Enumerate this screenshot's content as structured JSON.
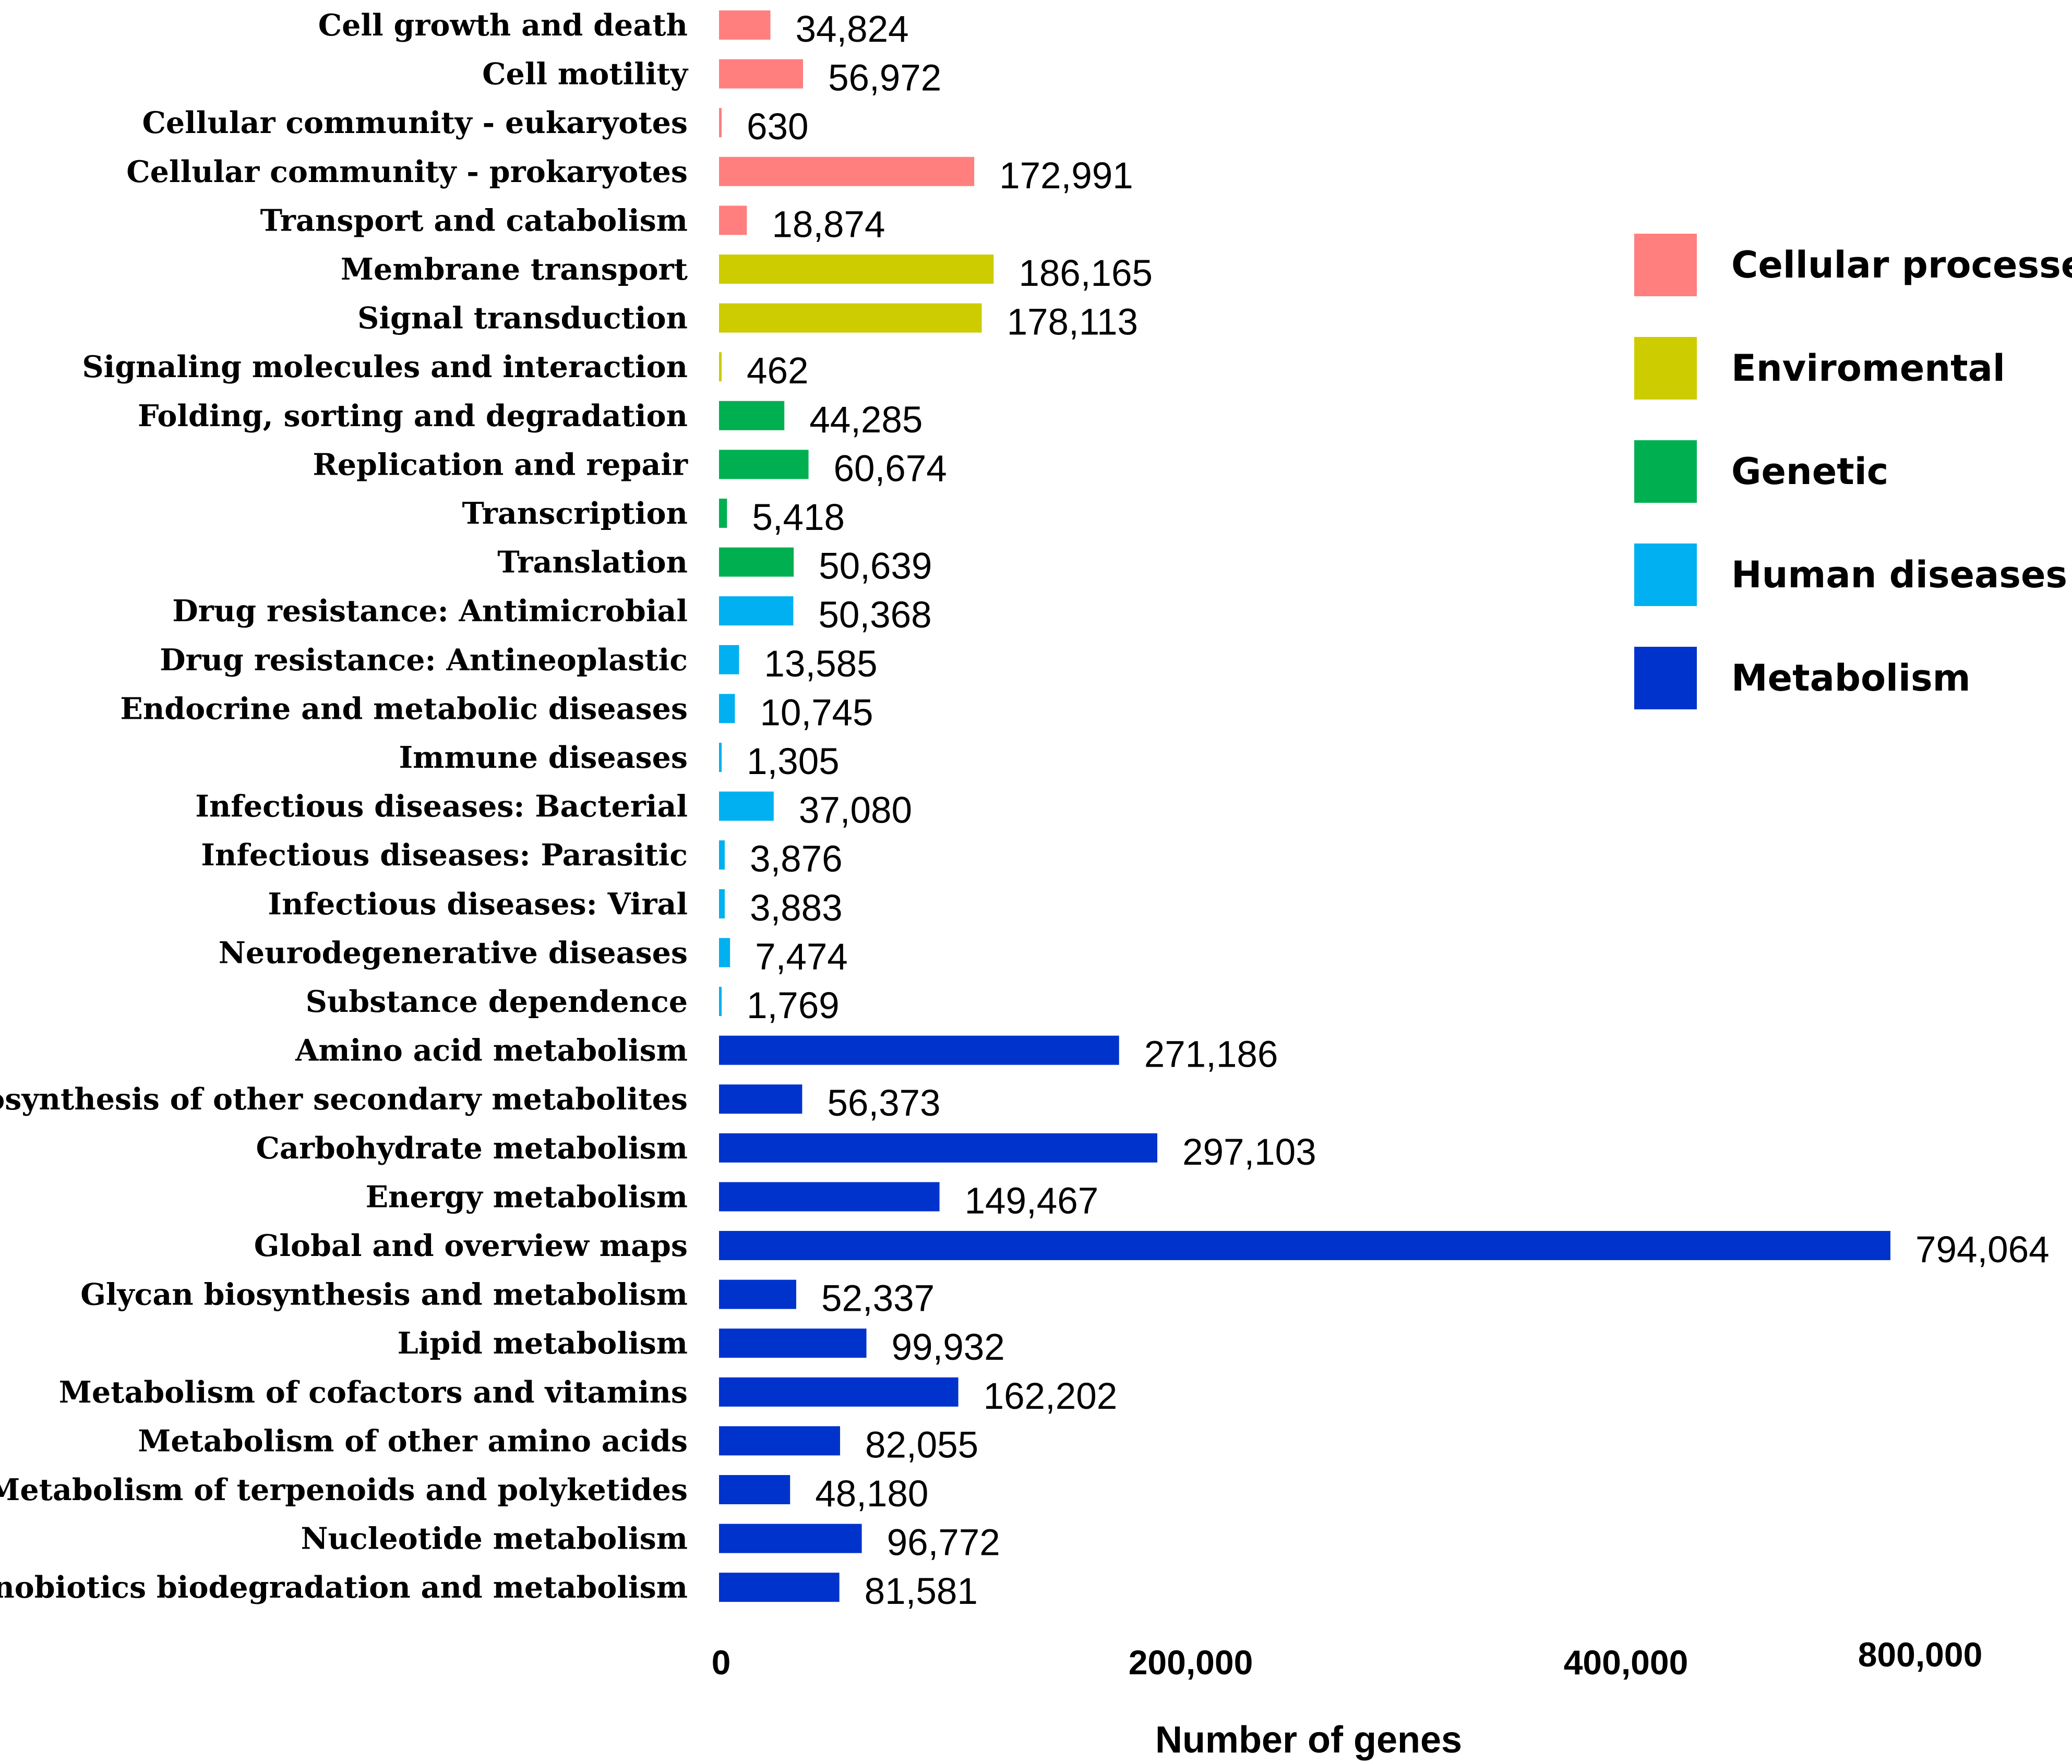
{
  "chart_data": {
    "type": "bar",
    "orientation": "horizontal",
    "xlabel": "Number of genes",
    "ylabel": "",
    "xticks": [
      "0",
      "200,000",
      "400,000",
      "800,000"
    ],
    "legend": [
      {
        "name": "Cellular processes",
        "color": "#ff7f7f"
      },
      {
        "name": "Enviromental",
        "color": "#cccc00"
      },
      {
        "name": "Genetic",
        "color": "#00b050"
      },
      {
        "name": "Human diseases",
        "color": "#00b0f0"
      },
      {
        "name": "Metabolism",
        "color": "#0033cc"
      }
    ],
    "categories": [
      {
        "label": "Cell growth and death",
        "value": 34824,
        "value_label": "34,824",
        "group": 0
      },
      {
        "label": "Cell motility",
        "value": 56972,
        "value_label": "56,972",
        "group": 0
      },
      {
        "label": "Cellular community - eukaryotes",
        "value": 630,
        "value_label": "630",
        "group": 0
      },
      {
        "label": "Cellular community - prokaryotes",
        "value": 172991,
        "value_label": "172,991",
        "group": 0
      },
      {
        "label": "Transport and catabolism",
        "value": 18874,
        "value_label": "18,874",
        "group": 0
      },
      {
        "label": "Membrane transport",
        "value": 186165,
        "value_label": "186,165",
        "group": 1
      },
      {
        "label": "Signal transduction",
        "value": 178113,
        "value_label": "178,113",
        "group": 1
      },
      {
        "label": "Signaling molecules and interaction",
        "value": 462,
        "value_label": "462",
        "group": 1
      },
      {
        "label": "Folding, sorting and degradation",
        "value": 44285,
        "value_label": "44,285",
        "group": 2
      },
      {
        "label": "Replication and repair",
        "value": 60674,
        "value_label": "60,674",
        "group": 2
      },
      {
        "label": "Transcription",
        "value": 5418,
        "value_label": "5,418",
        "group": 2
      },
      {
        "label": "Translation",
        "value": 50639,
        "value_label": "50,639",
        "group": 2
      },
      {
        "label": "Drug resistance: Antimicrobial",
        "value": 50368,
        "value_label": "50,368",
        "group": 3
      },
      {
        "label": "Drug resistance: Antineoplastic",
        "value": 13585,
        "value_label": "13,585",
        "group": 3
      },
      {
        "label": "Endocrine and metabolic diseases",
        "value": 10745,
        "value_label": "10,745",
        "group": 3
      },
      {
        "label": "Immune diseases",
        "value": 1305,
        "value_label": "1,305",
        "group": 3
      },
      {
        "label": "Infectious diseases: Bacterial",
        "value": 37080,
        "value_label": "37,080",
        "group": 3
      },
      {
        "label": "Infectious diseases: Parasitic",
        "value": 3876,
        "value_label": "3,876",
        "group": 3
      },
      {
        "label": "Infectious diseases: Viral",
        "value": 3883,
        "value_label": "3,883",
        "group": 3
      },
      {
        "label": "Neurodegenerative diseases",
        "value": 7474,
        "value_label": "7,474",
        "group": 3
      },
      {
        "label": "Substance dependence",
        "value": 1769,
        "value_label": "1,769",
        "group": 3
      },
      {
        "label": "Amino acid metabolism",
        "value": 271186,
        "value_label": "271,186",
        "group": 4
      },
      {
        "label": "Biosynthesis of other secondary metabolites",
        "value": 56373,
        "value_label": "56,373",
        "group": 4
      },
      {
        "label": "Carbohydrate metabolism",
        "value": 297103,
        "value_label": "297,103",
        "group": 4
      },
      {
        "label": "Energy metabolism",
        "value": 149467,
        "value_label": "149,467",
        "group": 4
      },
      {
        "label": "Global and overview maps",
        "value": 794064,
        "value_label": "794,064",
        "group": 4
      },
      {
        "label": "Glycan biosynthesis and metabolism",
        "value": 52337,
        "value_label": "52,337",
        "group": 4
      },
      {
        "label": "Lipid metabolism",
        "value": 99932,
        "value_label": "99,932",
        "group": 4
      },
      {
        "label": "Metabolism of cofactors and vitamins",
        "value": 162202,
        "value_label": "162,202",
        "group": 4
      },
      {
        "label": "Metabolism of other amino acids",
        "value": 82055,
        "value_label": "82,055",
        "group": 4
      },
      {
        "label": "Metabolism of terpenoids and polyketides",
        "value": 48180,
        "value_label": "48,180",
        "group": 4
      },
      {
        "label": "Nucleotide metabolism",
        "value": 96772,
        "value_label": "96,772",
        "group": 4
      },
      {
        "label": "Xenobiotics biodegradation and metabolism",
        "value": 81581,
        "value_label": "81,581",
        "group": 4
      }
    ]
  }
}
